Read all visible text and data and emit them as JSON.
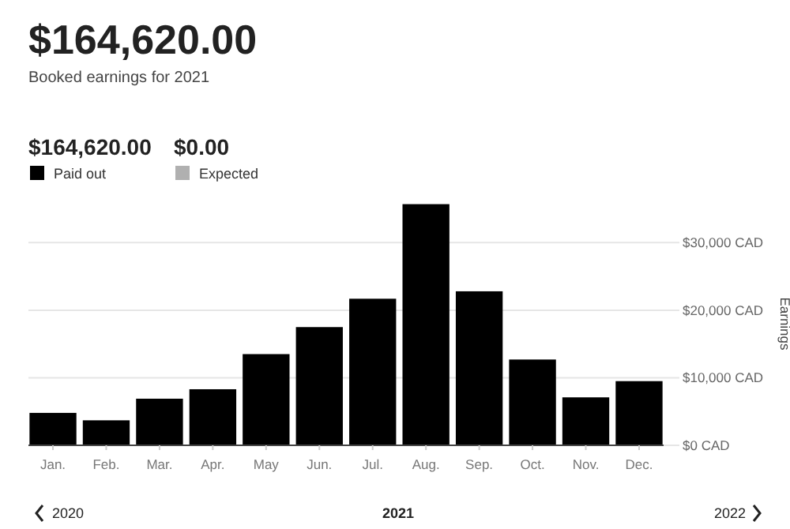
{
  "chart_data": {
    "type": "bar",
    "title": "$164,620.00",
    "subtitle": "Booked earnings for 2021",
    "ylabel": "Earnings",
    "categories": [
      "Jan.",
      "Feb.",
      "Mar.",
      "Apr.",
      "May",
      "Jun.",
      "Jul.",
      "Aug.",
      "Sep.",
      "Oct.",
      "Nov.",
      "Dec."
    ],
    "series": [
      {
        "name": "Paid out",
        "color": "#000000",
        "values": [
          4800,
          3700,
          6900,
          8300,
          13500,
          17500,
          21700,
          35700,
          22800,
          12700,
          7100,
          9500
        ]
      },
      {
        "name": "Expected",
        "color": "#b0b0b0",
        "values": [
          0,
          0,
          0,
          0,
          0,
          0,
          0,
          0,
          0,
          0,
          0,
          0
        ]
      }
    ],
    "stacked": true,
    "ylim": [
      0,
      36000
    ],
    "yticks": [
      {
        "value": 0,
        "label": "$0 CAD"
      },
      {
        "value": 10000,
        "label": "$10,000 CAD"
      },
      {
        "value": 20000,
        "label": "$20,000 CAD"
      },
      {
        "value": 30000,
        "label": "$30,000 CAD"
      }
    ],
    "grid": "y",
    "legend": "top left",
    "annotations": [
      "$164,620.00",
      "$0.00",
      "2020",
      "2021",
      "2022"
    ]
  }
}
